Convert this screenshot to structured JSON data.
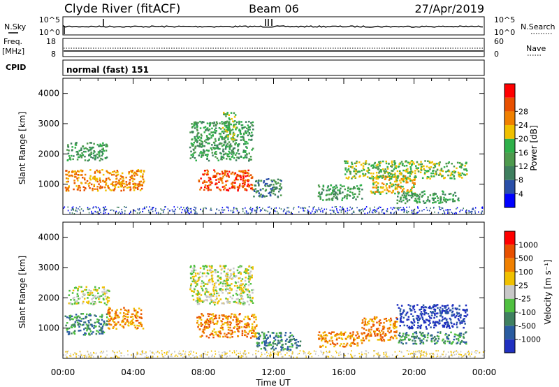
{
  "header": {
    "station": "Clyde River (fitACF)",
    "beam": "Beam 06",
    "date": "27/Apr/2019"
  },
  "top_panels": {
    "nsky_label": "N.Sky",
    "nsearch_label": "N.Search",
    "count_high": "10^5",
    "count_low": "10^0",
    "freq_label_1": "Freq.",
    "freq_label_2": "[MHz]",
    "freq_high": "18",
    "freq_low": "8",
    "nave_label": "Nave",
    "nave_high": "60",
    "nave_low": "0",
    "cpid_label": "CPID",
    "cpid_text": "normal (fast) 151"
  },
  "colors": {
    "power": [
      "#0000ff",
      "#2a4fa8",
      "#3f7f5f",
      "#4e9a4e",
      "#2fb04a",
      "#f0c000",
      "#f08000",
      "#e85000",
      "#ff0000"
    ],
    "velocity": [
      "#2030c0",
      "#2a5ca0",
      "#3f8060",
      "#50c040",
      "#c8c8c8",
      "#f0c000",
      "#f08000",
      "#e85000",
      "#ff0000"
    ]
  },
  "chart_data": [
    {
      "type": "heatmap",
      "name": "power",
      "ylabel": "Slant Range [km]",
      "xlim_hours": [
        0,
        24
      ],
      "ylim_km": [
        0,
        4500
      ],
      "yticks": [
        1000,
        2000,
        3000,
        4000
      ],
      "colorbar_label": "Power [dB]",
      "colorbar_ticks": [
        "4",
        "8",
        "12",
        "16",
        "20",
        "24",
        "28"
      ],
      "regions": [
        {
          "t0": 0.1,
          "t1": 4.6,
          "r0": 800,
          "r1": 1500,
          "level": 6
        },
        {
          "t0": 0.2,
          "t1": 2.5,
          "r0": 1800,
          "r1": 2400,
          "level": 3
        },
        {
          "t0": 7.7,
          "t1": 10.8,
          "r0": 800,
          "r1": 1500,
          "level": 7
        },
        {
          "t0": 7.2,
          "t1": 10.8,
          "r0": 1800,
          "r1": 3100,
          "level": 3
        },
        {
          "t0": 9.0,
          "t1": 9.8,
          "r0": 2500,
          "r1": 3400,
          "level": 4
        },
        {
          "t0": 10.8,
          "t1": 12.5,
          "r0": 600,
          "r1": 1200,
          "level": 2
        },
        {
          "t0": 14.5,
          "t1": 17.0,
          "r0": 500,
          "r1": 1000,
          "level": 3
        },
        {
          "t0": 17.5,
          "t1": 20.0,
          "r0": 700,
          "r1": 1300,
          "level": 5
        },
        {
          "t0": 16.0,
          "t1": 23.0,
          "r0": 1200,
          "r1": 1800,
          "level": 4
        },
        {
          "t0": 19.0,
          "t1": 22.5,
          "r0": 400,
          "r1": 800,
          "level": 3
        }
      ]
    },
    {
      "type": "heatmap",
      "name": "velocity",
      "ylabel": "Slant Range [km]",
      "xlim_hours": [
        0,
        24
      ],
      "ylim_km": [
        0,
        4500
      ],
      "yticks": [
        1000,
        2000,
        3000,
        4000
      ],
      "xticks": [
        "00:00",
        "04:00",
        "08:00",
        "12:00",
        "16:00",
        "20:00",
        "00:00"
      ],
      "xlabel": "Time UT",
      "colorbar_label": "Velocity [m s⁻¹]",
      "colorbar_ticks": [
        "1000",
        "500",
        "100",
        "25",
        "-25",
        "-100",
        "-500",
        "-1000"
      ],
      "regions": [
        {
          "t0": 0.1,
          "t1": 2.5,
          "r0": 800,
          "r1": 1500,
          "level": 2
        },
        {
          "t0": 2.5,
          "t1": 4.6,
          "r0": 1000,
          "r1": 1700,
          "level": 6
        },
        {
          "t0": 0.3,
          "t1": 2.6,
          "r0": 1800,
          "r1": 2400,
          "level": 4
        },
        {
          "t0": 7.6,
          "t1": 11.0,
          "r0": 700,
          "r1": 1500,
          "level": 6
        },
        {
          "t0": 7.2,
          "t1": 10.8,
          "r0": 1800,
          "r1": 3100,
          "level": 4
        },
        {
          "t0": 11.0,
          "t1": 13.5,
          "r0": 300,
          "r1": 900,
          "level": 2
        },
        {
          "t0": 14.5,
          "t1": 17.0,
          "r0": 400,
          "r1": 900,
          "level": 6
        },
        {
          "t0": 17.0,
          "t1": 19.0,
          "r0": 600,
          "r1": 1400,
          "level": 6
        },
        {
          "t0": 19.0,
          "t1": 23.0,
          "r0": 1000,
          "r1": 1800,
          "level": 0
        },
        {
          "t0": 19.0,
          "t1": 23.0,
          "r0": 500,
          "r1": 900,
          "level": 2
        }
      ]
    }
  ]
}
